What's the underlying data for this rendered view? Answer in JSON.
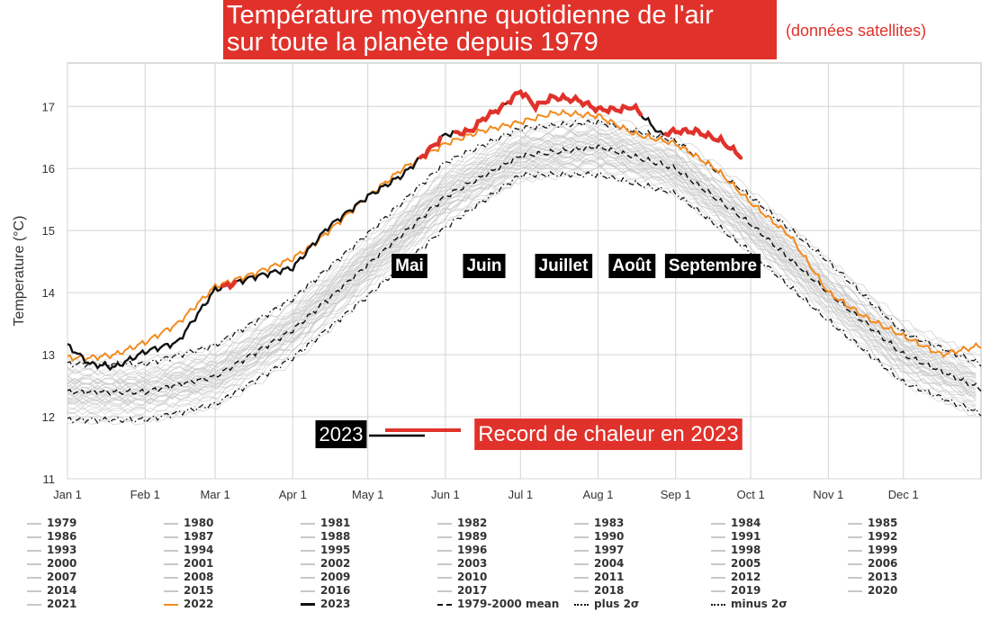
{
  "header": {
    "title_line1": "Température moyenne quotidienne de l'air",
    "title_line2": "sur toute la planète depuis 1979",
    "subtitle": "(données satellites)"
  },
  "colors": {
    "year": "#c8c8c8",
    "y2022": "#f28a1e",
    "y2023": "#111111",
    "record": "#e0322b",
    "mean": "#111111"
  },
  "annotations": {
    "months": [
      "Mai",
      "Juin",
      "Juillet",
      "Août",
      "Septembre"
    ],
    "year_tag": "2023",
    "record_tag": "Record de chaleur en 2023"
  },
  "chart_data": {
    "type": "line",
    "ylabel": "Temperature (°C)",
    "ylim": [
      11,
      17.7
    ],
    "yticks": [
      11,
      12,
      13,
      14,
      15,
      16,
      17
    ],
    "x_tick_labels": [
      "Jan 1",
      "Feb 1",
      "Mar 1",
      "Apr 1",
      "May 1",
      "Jun 1",
      "Jul 1",
      "Aug 1",
      "Sep 1",
      "Oct 1",
      "Nov 1",
      "Dec 1"
    ],
    "x_tick_days": [
      1,
      32,
      60,
      91,
      121,
      152,
      182,
      213,
      244,
      274,
      305,
      335
    ],
    "grid": true,
    "series": [
      {
        "name": "1979-2000 mean",
        "style": "dashed",
        "days": [
          1,
          32,
          60,
          91,
          121,
          152,
          182,
          213,
          244,
          274,
          305,
          335,
          366
        ],
        "values": [
          12.4,
          12.4,
          12.65,
          13.4,
          14.45,
          15.55,
          16.2,
          16.35,
          16.0,
          15.1,
          14.0,
          13.0,
          12.45
        ]
      },
      {
        "name": "plus 2σ",
        "style": "dashdot",
        "days": [
          1,
          32,
          60,
          91,
          121,
          152,
          182,
          213,
          244,
          274,
          305,
          335,
          366
        ],
        "values": [
          12.85,
          12.85,
          13.15,
          13.9,
          14.95,
          16.1,
          16.65,
          16.75,
          16.45,
          15.55,
          14.5,
          13.35,
          12.85
        ]
      },
      {
        "name": "minus 2σ",
        "style": "dashdot",
        "days": [
          1,
          32,
          60,
          91,
          121,
          152,
          182,
          213,
          244,
          274,
          305,
          335,
          366
        ],
        "values": [
          11.95,
          11.95,
          12.2,
          12.95,
          13.95,
          15.05,
          15.9,
          15.9,
          15.6,
          14.65,
          13.55,
          12.55,
          12.05
        ]
      },
      {
        "name": "2022",
        "style": "solid",
        "days": [
          1,
          10,
          20,
          32,
          45,
          60,
          75,
          91,
          100,
          121,
          135,
          152,
          166,
          182,
          196,
          213,
          228,
          244,
          260,
          274,
          290,
          305,
          320,
          335,
          350,
          366
        ],
        "values": [
          12.95,
          12.95,
          13.0,
          13.2,
          13.5,
          14.1,
          14.3,
          14.55,
          14.8,
          15.55,
          16.0,
          16.4,
          16.6,
          16.75,
          16.9,
          16.85,
          16.55,
          16.4,
          16.0,
          15.45,
          14.9,
          14.0,
          13.6,
          13.3,
          13.0,
          13.15
        ]
      },
      {
        "name": "2023",
        "style": "solid",
        "days": [
          1,
          10,
          20,
          32,
          45,
          60,
          75,
          91,
          105,
          121,
          135,
          152,
          162,
          167,
          175,
          182,
          188,
          195,
          205,
          213,
          222,
          227,
          232,
          238,
          244,
          252,
          262,
          270
        ],
        "values": [
          13.15,
          12.85,
          12.8,
          13.05,
          13.2,
          14.05,
          14.25,
          14.4,
          15.05,
          15.55,
          15.9,
          16.55,
          16.6,
          16.8,
          17.0,
          17.25,
          17.0,
          17.15,
          17.1,
          16.95,
          16.95,
          17.0,
          16.8,
          16.55,
          16.6,
          16.6,
          16.45,
          16.2
        ]
      }
    ],
    "record_segments": [
      [
        63,
        68
      ],
      [
        142,
        150
      ],
      [
        156,
        175
      ],
      [
        177,
        230
      ],
      [
        240,
        270
      ]
    ],
    "legend": [
      "1979",
      "1980",
      "1981",
      "1982",
      "1983",
      "1984",
      "1985",
      "1986",
      "1987",
      "1988",
      "1989",
      "1990",
      "1991",
      "1992",
      "1993",
      "1994",
      "1995",
      "1996",
      "1997",
      "1998",
      "1999",
      "2000",
      "2001",
      "2002",
      "2003",
      "2004",
      "2005",
      "2006",
      "2007",
      "2008",
      "2009",
      "2010",
      "2011",
      "2012",
      "2013",
      "2014",
      "2015",
      "2016",
      "2017",
      "2018",
      "2019",
      "2020",
      "2021",
      "2022",
      "2023",
      "1979-2000 mean",
      "plus 2σ",
      "minus 2σ"
    ]
  }
}
